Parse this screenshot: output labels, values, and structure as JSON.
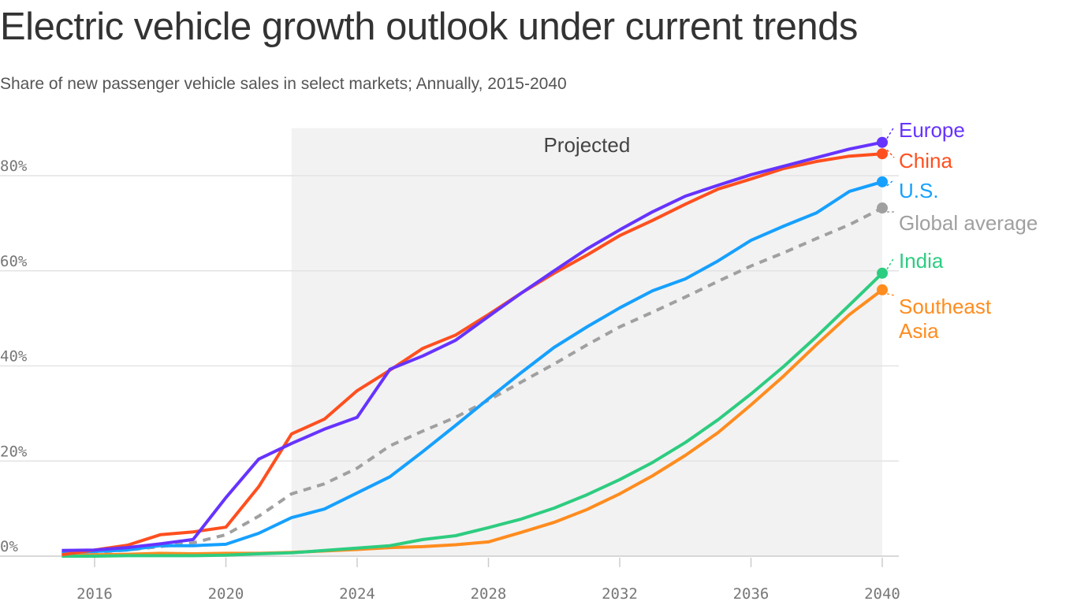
{
  "chart_data": {
    "type": "line",
    "title": "Electric vehicle growth outlook under current trends",
    "subtitle": "Share of new passenger vehicle sales in select markets; Annually, 2015-2040",
    "x": [
      2015,
      2016,
      2017,
      2018,
      2019,
      2020,
      2021,
      2022,
      2023,
      2024,
      2025,
      2026,
      2027,
      2028,
      2029,
      2030,
      2031,
      2032,
      2033,
      2034,
      2035,
      2036,
      2037,
      2038,
      2039,
      2040
    ],
    "xticks": [
      "2016",
      "2020",
      "2024",
      "2028",
      "2032",
      "2036",
      "2040"
    ],
    "yticks": [
      "0%",
      "20%",
      "40%",
      "60%",
      "80%"
    ],
    "ylim": [
      0,
      90
    ],
    "xlim": [
      2015,
      2040
    ],
    "grid": true,
    "annotation": {
      "label": "Projected",
      "from": 2022,
      "to": 2040
    },
    "series": [
      {
        "name": "Europe",
        "color": "#6633ff",
        "dashed": false,
        "label_lines": [
          "Europe"
        ],
        "values": [
          1.2,
          1.3,
          1.8,
          2.6,
          3.5,
          12.3,
          20.4,
          23.7,
          26.7,
          29.2,
          39.3,
          42.1,
          45.4,
          50.4,
          55.3,
          60.0,
          64.6,
          68.6,
          72.4,
          75.7,
          78.0,
          80.2,
          82.0,
          83.8,
          85.6,
          87.0
        ]
      },
      {
        "name": "China",
        "color": "#ff4f1f",
        "dashed": false,
        "label_lines": [
          "China"
        ],
        "values": [
          0.3,
          1.3,
          2.3,
          4.5,
          5.1,
          6.1,
          14.6,
          25.7,
          28.8,
          34.8,
          39.1,
          43.7,
          46.5,
          50.8,
          55.3,
          59.5,
          63.3,
          67.4,
          70.6,
          74.0,
          77.2,
          79.3,
          81.5,
          83.0,
          84.1,
          84.6
        ]
      },
      {
        "name": "U.S.",
        "color": "#16a0ff",
        "dashed": false,
        "label_lines": [
          "U.S."
        ],
        "values": [
          0.7,
          1.0,
          1.3,
          2.2,
          2.2,
          2.5,
          4.8,
          8.1,
          9.9,
          13.3,
          16.7,
          22.0,
          27.5,
          33.1,
          38.6,
          43.9,
          48.2,
          52.2,
          55.8,
          58.3,
          62.1,
          66.4,
          69.4,
          72.2,
          76.7,
          78.7
        ]
      },
      {
        "name": "Global average",
        "color": "#a0a0a0",
        "dashed": true,
        "label_lines": [
          "Global average"
        ],
        "values": [
          0.5,
          0.8,
          1.3,
          2.0,
          2.8,
          4.5,
          8.4,
          13.1,
          15.2,
          18.5,
          23.2,
          26.3,
          29.2,
          32.8,
          36.6,
          40.4,
          44.4,
          48.2,
          51.3,
          54.5,
          57.8,
          61.0,
          63.8,
          66.8,
          69.7,
          73.2
        ]
      },
      {
        "name": "India",
        "color": "#2ecc80",
        "dashed": false,
        "label_lines": [
          "India"
        ],
        "values": [
          0.0,
          0.0,
          0.1,
          0.1,
          0.1,
          0.2,
          0.5,
          0.7,
          1.2,
          1.7,
          2.2,
          3.5,
          4.3,
          6.0,
          7.8,
          10.1,
          12.9,
          16.1,
          19.7,
          23.9,
          28.7,
          34.1,
          39.9,
          46.2,
          52.8,
          59.5
        ]
      },
      {
        "name": "Southeast Asia",
        "color": "#ff8c1f",
        "dashed": false,
        "label_lines": [
          "Southeast",
          "Asia"
        ],
        "values": [
          0.2,
          0.3,
          0.4,
          0.6,
          0.5,
          0.6,
          0.6,
          0.8,
          1.1,
          1.4,
          1.8,
          2.0,
          2.4,
          3.0,
          5.0,
          7.1,
          9.8,
          13.1,
          16.9,
          21.2,
          26.0,
          31.8,
          37.9,
          44.5,
          50.8,
          56.0
        ]
      }
    ]
  }
}
